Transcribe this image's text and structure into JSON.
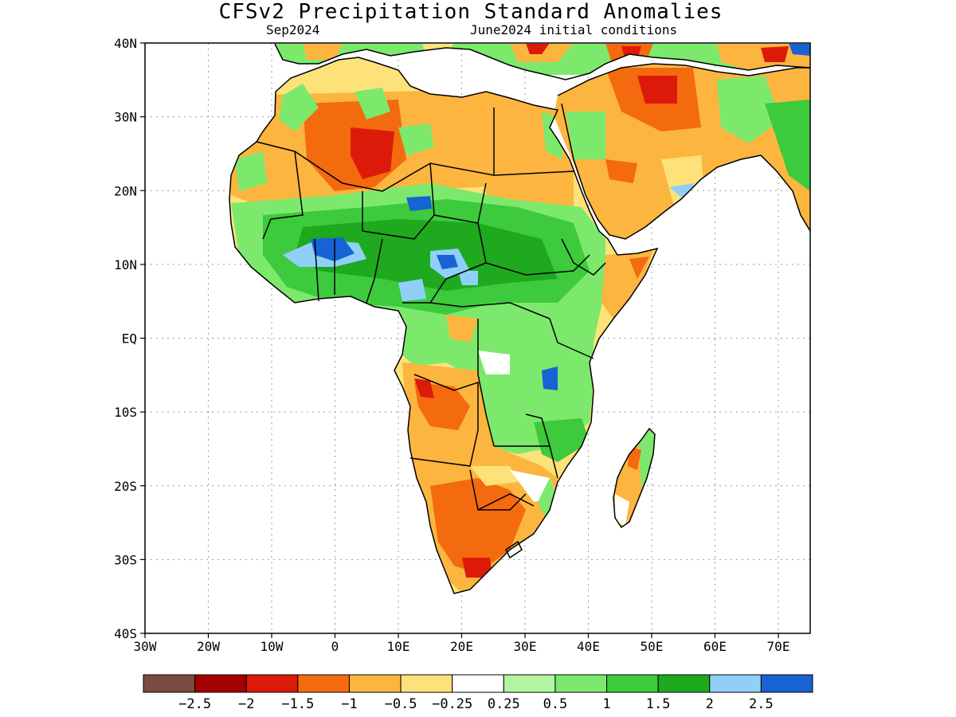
{
  "title": "CFSv2 Precipitation Standard Anomalies",
  "subtitle_left": "Sep2024",
  "subtitle_right": "June2024 initial conditions",
  "axes": {
    "lat_labels": [
      "40N",
      "30N",
      "20N",
      "10N",
      "EQ",
      "10S",
      "20S",
      "30S",
      "40S"
    ],
    "lon_labels": [
      "30W",
      "20W",
      "10W",
      "0",
      "10E",
      "20E",
      "30E",
      "40E",
      "50E",
      "60E",
      "70E"
    ]
  },
  "legend": {
    "colors": [
      "#7b4b3f",
      "#a30000",
      "#dc1a0a",
      "#f46a0f",
      "#fcb53f",
      "#fde27a",
      "#ffffff",
      "#b3f4a3",
      "#7ce96d",
      "#3dca3d",
      "#1ea91e",
      "#90d0f8",
      "#1762d4"
    ],
    "labels": [
      "−2.5",
      "−2",
      "−1.5",
      "−1",
      "−0.5",
      "−0.25",
      "0.25",
      "0.5",
      "1",
      "1.5",
      "2",
      "2.5"
    ]
  }
}
